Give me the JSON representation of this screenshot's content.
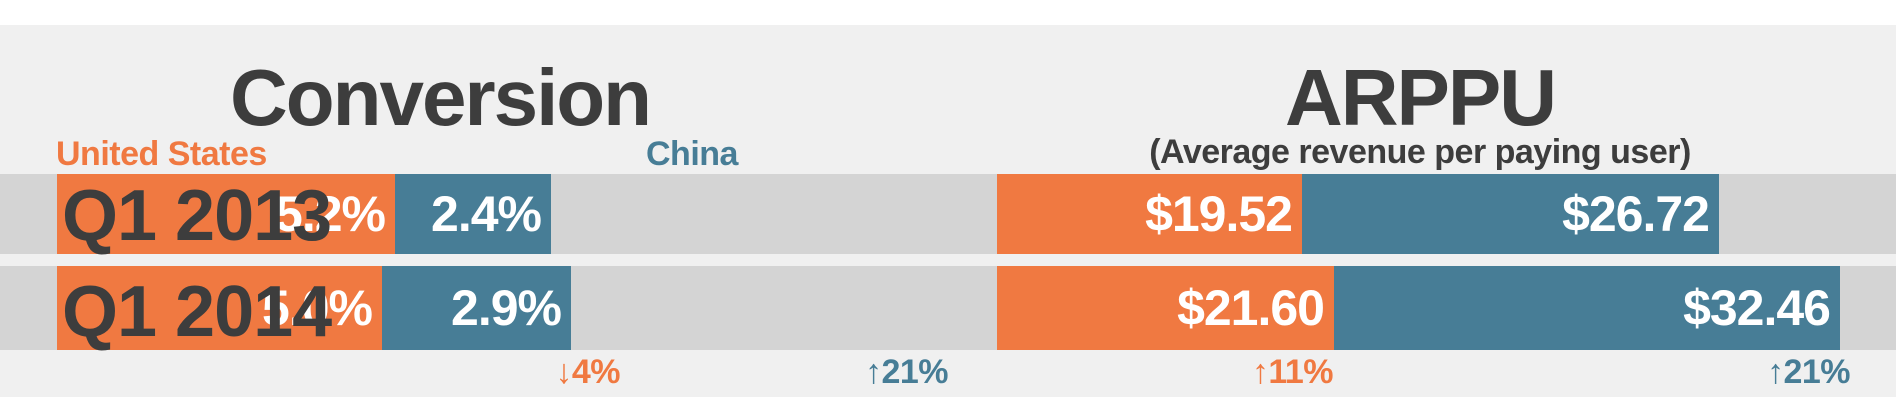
{
  "colors": {
    "united_states": "#f07941",
    "china": "#477d96",
    "text": "#3d3d3d"
  },
  "chart_data": [
    {
      "type": "bar",
      "title": "Conversion",
      "subtitle": "",
      "legend": [
        "United States",
        "China"
      ],
      "categories": [
        "Q1 2013",
        "Q1 2014"
      ],
      "series": [
        {
          "name": "United States",
          "values": [
            5.2,
            5.0
          ],
          "labels": [
            "5.2%",
            "5.0%"
          ],
          "color": "#f07941"
        },
        {
          "name": "China",
          "values": [
            2.4,
            2.9
          ],
          "labels": [
            "2.4%",
            "2.9%"
          ],
          "color": "#477d96"
        }
      ],
      "stacked": true,
      "changes": [
        {
          "series": "United States",
          "direction": "down",
          "text": "4%"
        },
        {
          "series": "China",
          "direction": "up",
          "text": "21%"
        }
      ]
    },
    {
      "type": "bar",
      "title": "ARPPU",
      "subtitle": "(Average revenue per paying user)",
      "categories": [
        "Q1 2013",
        "Q1 2014"
      ],
      "series": [
        {
          "name": "United States",
          "values": [
            19.52,
            21.6
          ],
          "labels": [
            "$19.52",
            "$21.60"
          ],
          "color": "#f07941"
        },
        {
          "name": "China",
          "values": [
            26.72,
            32.46
          ],
          "labels": [
            "$26.72",
            "$32.46"
          ],
          "color": "#477d96"
        }
      ],
      "stacked": true,
      "changes": [
        {
          "series": "United States",
          "direction": "up",
          "text": "11%"
        },
        {
          "series": "China",
          "direction": "up",
          "text": "21%"
        }
      ]
    }
  ]
}
